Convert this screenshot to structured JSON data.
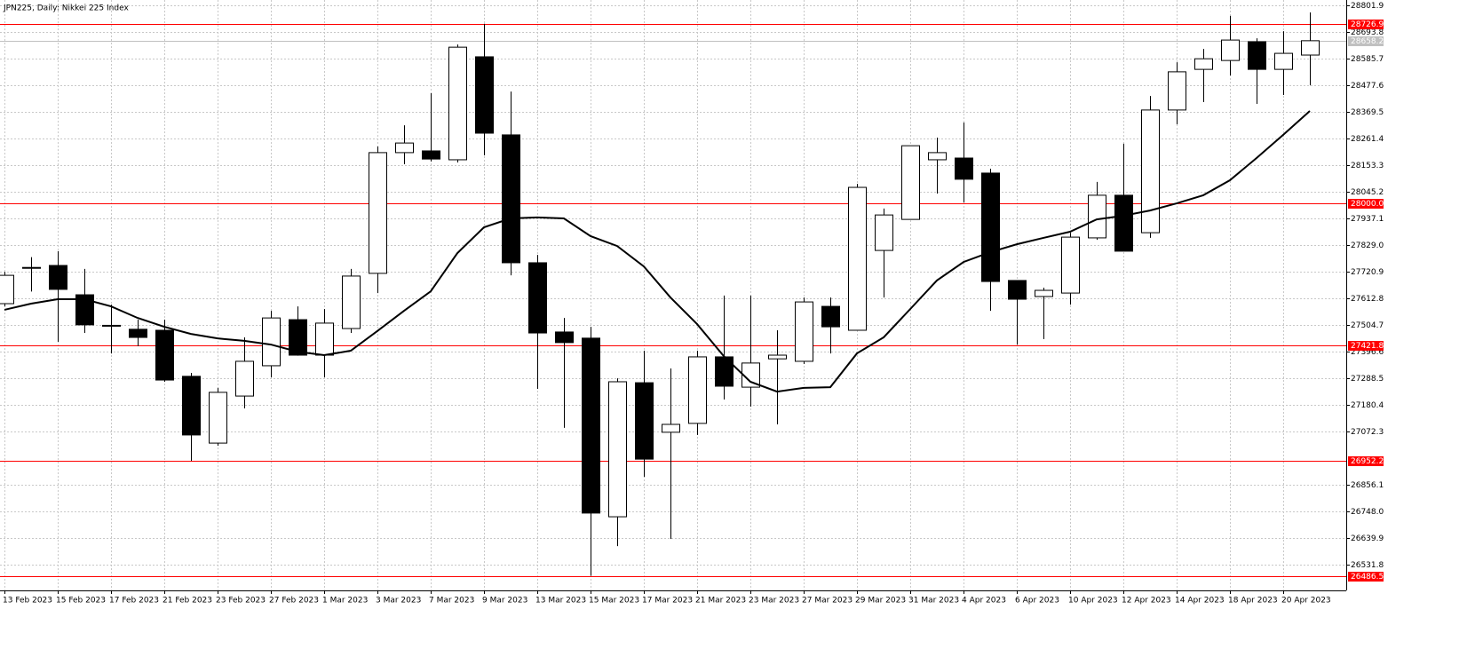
{
  "chart_data": {
    "type": "candlestick",
    "title": "JPN225, Daily: Nikkei 225 Index",
    "categories": [
      "13 Feb 2023",
      null,
      "15 Feb 2023",
      null,
      "17 Feb 2023",
      null,
      "21 Feb 2023",
      null,
      "23 Feb 2023",
      null,
      "27 Feb 2023",
      null,
      "1 Mar 2023",
      null,
      "3 Mar 2023",
      null,
      "7 Mar 2023",
      null,
      "9 Mar 2023",
      null,
      "13 Mar 2023",
      null,
      "15 Mar 2023",
      null,
      "17 Mar 2023",
      null,
      "21 Mar 2023",
      null,
      "23 Mar 2023",
      null,
      "27 Mar 2023",
      null,
      "29 Mar 2023",
      null,
      "31 Mar 2023",
      null,
      "4 Apr 2023",
      null,
      "6 Apr 2023",
      null,
      "10 Apr 2023",
      null,
      "12 Apr 2023",
      null,
      "14 Apr 2023",
      null,
      "18 Apr 2023",
      null,
      "20 Apr 2023",
      null
    ],
    "open": [
      27591,
      27735,
      27746,
      27627,
      27503,
      27487,
      27483,
      27296,
      27025,
      27216,
      27339,
      27526,
      27382,
      27490,
      27714,
      28204,
      28211,
      28175,
      28593,
      28276,
      27757,
      27476,
      27451,
      26726,
      27270,
      27069,
      27105,
      27375,
      27252,
      27367,
      27357,
      27580,
      27483,
      27807,
      27933,
      28175,
      28182,
      28121,
      27685,
      27620,
      27634,
      27858,
      28031,
      27879,
      28377,
      28542,
      28578,
      28654,
      28542,
      28600
    ],
    "high": [
      27720,
      27780,
      27804,
      27732,
      27587,
      27526,
      27526,
      27310,
      27249,
      27454,
      27562,
      27580,
      27569,
      27732,
      28229,
      28315,
      28445,
      28643,
      28726.9,
      28452,
      27789,
      27533,
      27497,
      27288,
      27400,
      27328,
      27400,
      27624,
      27624,
      27483,
      27616,
      27616,
      28077,
      27977,
      28232,
      28265,
      28326,
      28139,
      27685,
      27656,
      27879,
      28085,
      28240,
      28434,
      28571,
      28625,
      28759,
      28668,
      28697,
      28773
    ],
    "low": [
      27580,
      27640,
      27436,
      27472,
      27389,
      27418,
      27274,
      26953,
      27014,
      27166,
      27292,
      27380,
      27292,
      27472,
      27634,
      28157,
      28168,
      28164,
      28193,
      27706,
      27245,
      27087,
      26486.5,
      26607,
      26888,
      26636,
      27058,
      27202,
      27173,
      27101,
      27346,
      27389,
      27483,
      27616,
      27933,
      28038,
      28002,
      27562,
      27425,
      27447,
      27587,
      27850,
      27804,
      27858,
      28319,
      28409,
      28517,
      28402,
      28438,
      28477
    ],
    "close": [
      27706,
      27738,
      27649,
      27505,
      27501,
      27454,
      27281,
      27058,
      27231,
      27357,
      27533,
      27382,
      27512,
      27703,
      28204,
      28243,
      28178,
      28632,
      28283,
      27757,
      27472,
      27433,
      26741,
      27274,
      26960,
      27101,
      27375,
      27256,
      27350,
      27382,
      27598,
      27497,
      28063,
      27951,
      28232,
      28204,
      28096,
      27681,
      27609,
      27645,
      27861,
      28031,
      27804,
      28377,
      28532,
      28585,
      28661,
      28542,
      28607,
      28658.2
    ],
    "up_color": "#ffffff",
    "down_color": "#000000",
    "ma": {
      "color": "#000000",
      "values": [
        27566,
        27591,
        27609,
        27609,
        27580,
        27533,
        27497,
        27468,
        27450,
        27440,
        27425,
        27396,
        27382,
        27400,
        27480,
        27562,
        27641,
        27796,
        27901,
        27937,
        27941,
        27937,
        27865,
        27825,
        27742,
        27616,
        27508,
        27378,
        27274,
        27234,
        27249,
        27252,
        27389,
        27454,
        27569,
        27685,
        27760,
        27800,
        27832,
        27858,
        27883,
        27933,
        27948,
        27969,
        27998,
        28031,
        28092,
        28182,
        28276,
        28373
      ]
    },
    "ylim": [
      26427.1,
      28823.5
    ],
    "yticks": [
      28801.9,
      28693.8,
      28585.7,
      28477.6,
      28369.5,
      28261.4,
      28153.3,
      28045.2,
      27937.1,
      {
        "value": 27829,
        "label": "27829.0"
      },
      27720.9,
      27612.8,
      27504.7,
      27396.6,
      27288.5,
      27180.4,
      27072.3,
      26856.1,
      {
        "value": 26748,
        "label": "26748.0"
      },
      26639.9,
      26531.8
    ],
    "grid": true,
    "levels": [
      28726.9,
      {
        "value": 28000,
        "label": "28000.0"
      },
      27421.8,
      26952.2,
      26486.5
    ],
    "level_color": "#ff0000",
    "last_price": 28658.2,
    "last_price_color": "#c0c0c0"
  }
}
